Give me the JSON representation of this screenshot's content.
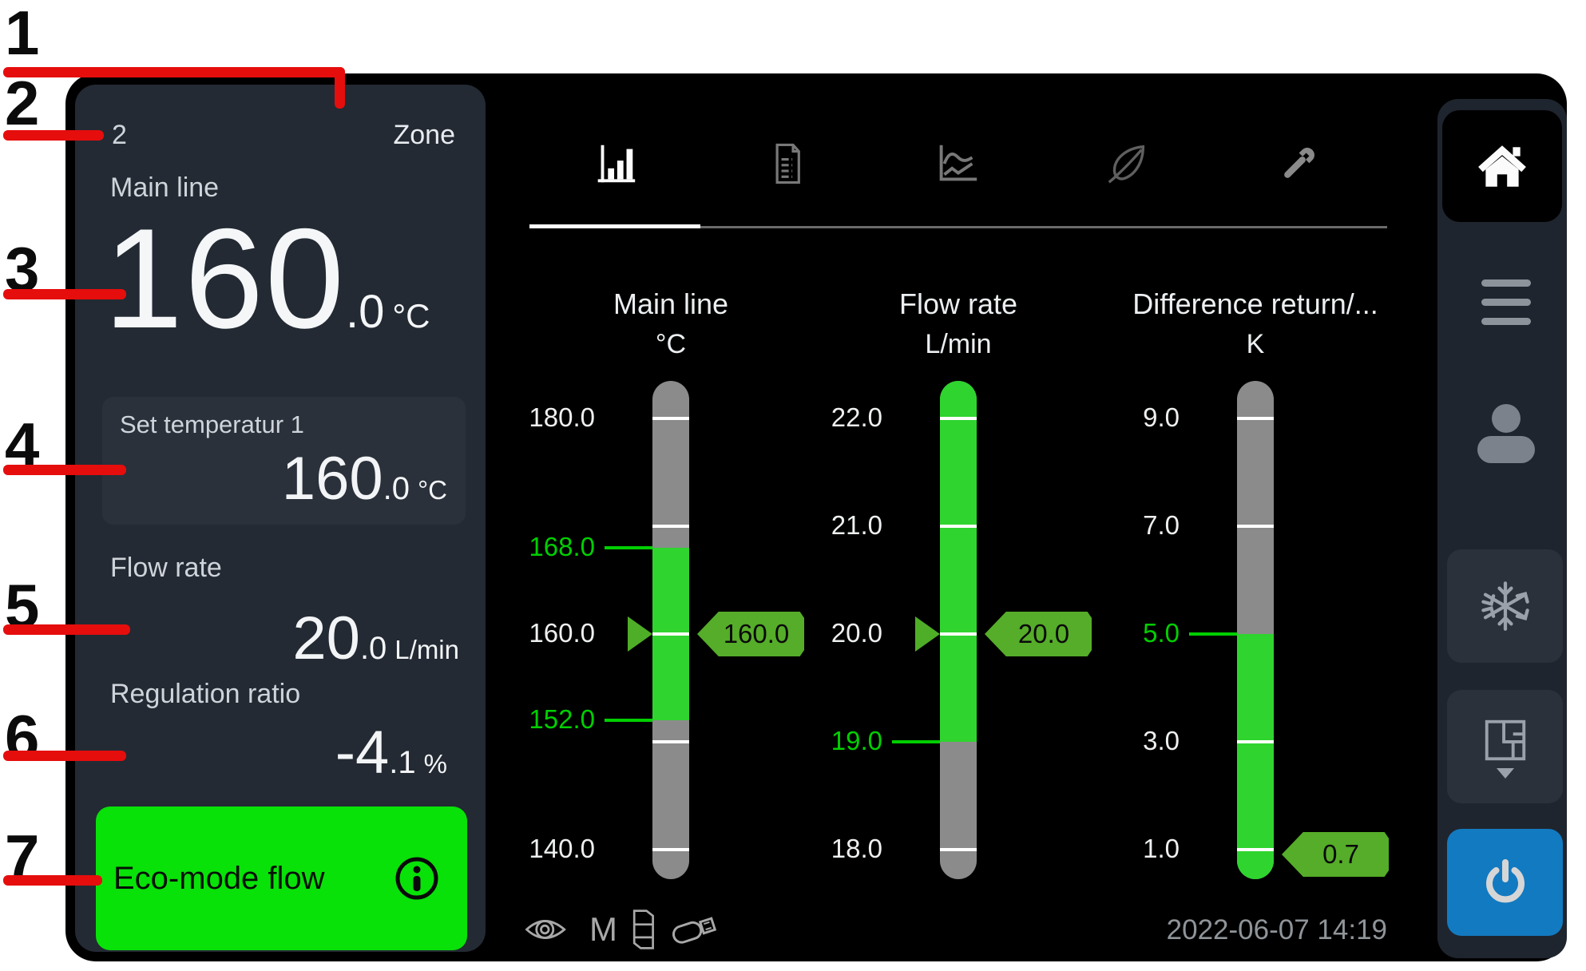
{
  "callouts": [
    "1",
    "2",
    "3",
    "4",
    "5",
    "6",
    "7"
  ],
  "zone_panel": {
    "zone_number": "2",
    "zone_label": "Zone",
    "main_line": {
      "label": "Main line",
      "value": "160",
      "decimal": ".0",
      "unit": "°C"
    },
    "set_temperature": {
      "label": "Set temperatur 1",
      "value": "160",
      "decimal": ".0",
      "unit": "°C"
    },
    "flow_rate": {
      "label": "Flow rate",
      "value": "20",
      "decimal": ".0",
      "unit": "L/min"
    },
    "regulation_ratio": {
      "label": "Regulation ratio",
      "value": "-4",
      "decimal": ".1",
      "unit": "%"
    },
    "eco_mode": {
      "label": "Eco-mode flow",
      "icon": "info-icon"
    }
  },
  "tabs": {
    "active_index": 0,
    "items": [
      {
        "icon": "bar-chart-icon"
      },
      {
        "icon": "report-list-icon"
      },
      {
        "icon": "trend-graph-icon"
      },
      {
        "icon": "eco-leaf-icon"
      },
      {
        "icon": "service-wrench-icon"
      }
    ]
  },
  "gauges": [
    {
      "title": "Main line",
      "unit": "°C",
      "scale": {
        "max": 180,
        "min": 140
      },
      "ticks": [
        {
          "value": 180,
          "label": "180.0"
        },
        {
          "value": 170
        },
        {
          "value": 160,
          "label": "160.0"
        },
        {
          "value": 150
        },
        {
          "value": 140,
          "label": "140.0"
        }
      ],
      "limits": [
        {
          "value": 168,
          "label": "168.0"
        },
        {
          "value": 152,
          "label": "152.0"
        }
      ],
      "green_band": {
        "from": 168,
        "to": 152
      },
      "setpoint": {
        "value": 160
      },
      "tag": {
        "label": "160.0",
        "value": 160
      }
    },
    {
      "title": "Flow rate",
      "unit": "L/min",
      "scale": {
        "max": 22,
        "min": 18
      },
      "ticks": [
        {
          "value": 22,
          "label": "22.0"
        },
        {
          "value": 21,
          "label": "21.0"
        },
        {
          "value": 20,
          "label": "20.0"
        },
        {
          "value": 19,
          "label": "19.0",
          "limit": true
        },
        {
          "value": 18,
          "label": "18.0"
        }
      ],
      "limits": [],
      "green_band": {
        "from": null,
        "to": 19
      },
      "setpoint": {
        "value": 20
      },
      "tag": {
        "label": "20.0",
        "value": 20
      }
    },
    {
      "title": "Difference return/...",
      "unit": "K",
      "scale": {
        "max": 9,
        "min": 1
      },
      "ticks": [
        {
          "value": 9,
          "label": "9.0"
        },
        {
          "value": 7,
          "label": "7.0"
        },
        {
          "value": 5,
          "label": "5.0",
          "limit": true
        },
        {
          "value": 3,
          "label": "3.0"
        },
        {
          "value": 1,
          "label": "1.0"
        }
      ],
      "limits": [],
      "green_band": {
        "from": 5,
        "to": null
      },
      "setpoint": null,
      "tag": {
        "label": "0.7",
        "value": 0.7
      }
    }
  ],
  "status_bar": {
    "monitor_label": "M",
    "icons": [
      "eye-icon",
      "memory-card-icon",
      "usb-icon"
    ],
    "timestamp": "2022-06-07  14:19"
  },
  "sidebar": {
    "items": [
      "home",
      "menu",
      "user",
      "freeze",
      "zone-map",
      "power"
    ]
  },
  "colors": {
    "eco_green": "#08e208",
    "gauge_green": "#2fd42f",
    "tag_green": "#55ad29",
    "limit_green": "#00cf00",
    "tube_gray": "#8b8b8b",
    "callout_red": "#e60d0d",
    "power_blue": "#127ac1",
    "panel_bg": "#232a33",
    "screen_bg": "#000000"
  }
}
